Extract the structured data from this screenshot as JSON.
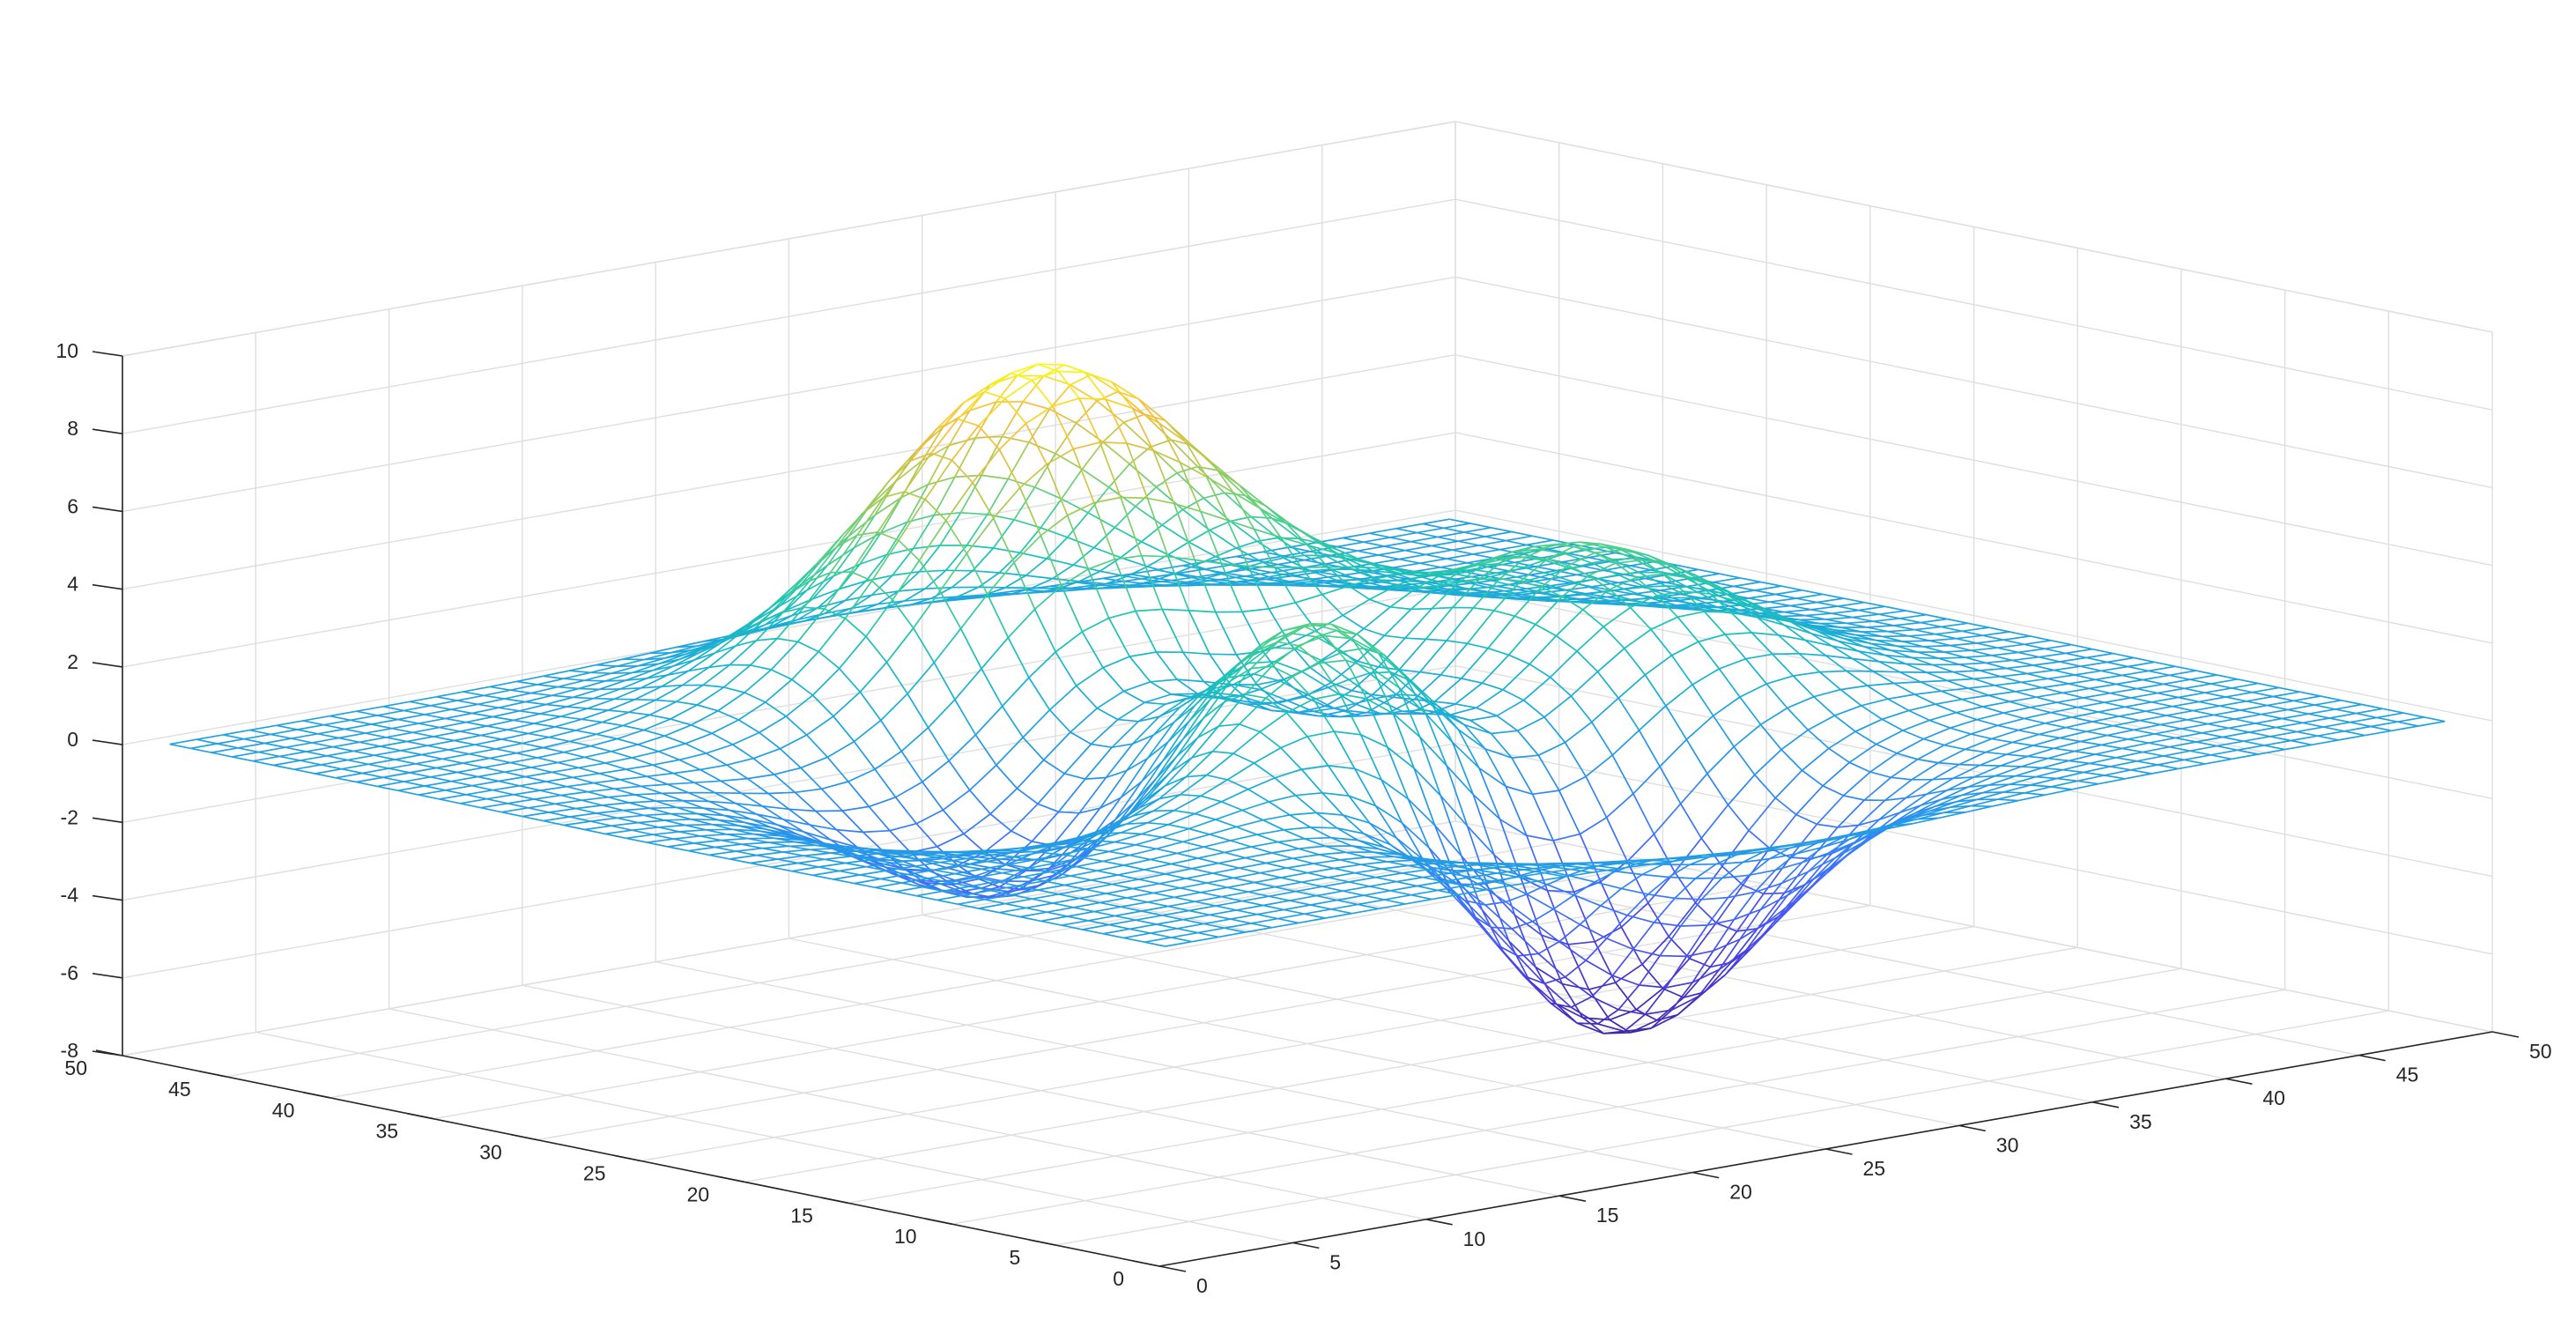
{
  "chart_data": {
    "type": "surface-mesh",
    "function": "peaks",
    "mesh_size": [
      49,
      49
    ],
    "title": "",
    "xlabel": "",
    "ylabel": "",
    "zlabel": "",
    "xlim": [
      0,
      50
    ],
    "ylim": [
      0,
      50
    ],
    "zlim": [
      -8,
      10
    ],
    "x_ticks": [
      0,
      5,
      10,
      15,
      20,
      25,
      30,
      35,
      40,
      45,
      50
    ],
    "y_ticks": [
      0,
      5,
      10,
      15,
      20,
      25,
      30,
      35,
      40,
      45,
      50
    ],
    "z_ticks": [
      -8,
      -6,
      -4,
      -2,
      0,
      2,
      4,
      6,
      8,
      10
    ],
    "x_tick_labels": [
      "0",
      "5",
      "10",
      "15",
      "20",
      "25",
      "30",
      "35",
      "40",
      "45",
      "50"
    ],
    "y_tick_labels": [
      "0",
      "5",
      "10",
      "15",
      "20",
      "25",
      "30",
      "35",
      "40",
      "45",
      "50"
    ],
    "z_tick_labels": [
      "-8",
      "-6",
      "-4",
      "-2",
      "0",
      "2",
      "4",
      "6",
      "8",
      "10"
    ],
    "z_max": 8.1,
    "z_min": -6.55,
    "grid": true,
    "box": "back-planes",
    "colormap": "parula",
    "colors": {
      "axis": "#262626",
      "grid": "#dedede",
      "background": "#ffffff"
    }
  }
}
